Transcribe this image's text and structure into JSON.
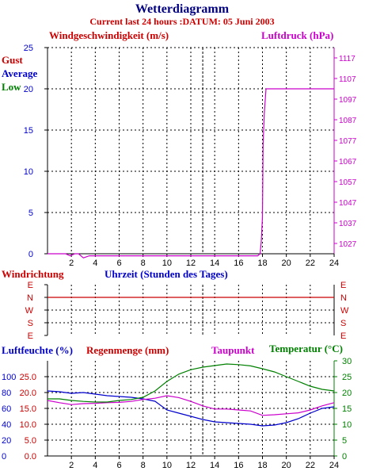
{
  "header": {
    "title": "Wetterdiagramm",
    "subtitle": "Current last 24 hours :DATUM: 05 Juni 2003"
  },
  "colors": {
    "title": "#000080",
    "subtitle": "#cc0000",
    "gust": "#cc0000",
    "average": "#0000cc",
    "low": "#008000",
    "pressure": "#cc00cc",
    "humidity": "#0000cc",
    "rain": "#cc0000",
    "dewpoint": "#cc00cc",
    "temperature": "#008000",
    "axis": "#000000"
  },
  "chart_data": [
    {
      "type": "line",
      "title": "Windgeschwindigkeit (m/s)",
      "title_right": "Luftdruck (hPa)",
      "xlabel": "Uhrzeit (Stunden des Tages)",
      "xlim": [
        0,
        24
      ],
      "x_ticks": [
        2,
        4,
        6,
        8,
        10,
        12,
        14,
        16,
        18,
        20,
        22,
        24
      ],
      "ylim": [
        0,
        25
      ],
      "y_ticks": [
        0,
        5,
        10,
        15,
        20,
        25
      ],
      "y2lim": [
        1022,
        1122
      ],
      "y2_ticks": [
        1027,
        1037,
        1047,
        1057,
        1067,
        1077,
        1087,
        1097,
        1107,
        1117
      ],
      "grid": true,
      "legend": [
        "Gust",
        "Average",
        "Low"
      ],
      "series": [
        {
          "name": "Luftdruck (hPa)",
          "axis": "right",
          "x": [
            0,
            0.5,
            1.0,
            1.5,
            1.9,
            2.3,
            2.6,
            3.0,
            3.5,
            4.0,
            5.0,
            6.0,
            7.0,
            8.0,
            9.0,
            10.0,
            11.0,
            12.0,
            13.0,
            14.0,
            15.0,
            16.0,
            17.0,
            17.6,
            17.8,
            17.9,
            18.0,
            18.05,
            18.15,
            18.3,
            19,
            20,
            21,
            22,
            23,
            24
          ],
          "y": [
            1022,
            1022,
            1022,
            1022,
            1021,
            1022,
            1022,
            1020,
            1021,
            1021,
            1021,
            1021,
            1021,
            1021,
            1021,
            1021,
            1021,
            1021,
            1021,
            1021,
            1021,
            1021,
            1021,
            1021,
            1022,
            1028,
            1040,
            1075,
            1090,
            1102,
            1102,
            1102,
            1102,
            1102,
            1102,
            1102
          ]
        }
      ]
    },
    {
      "type": "line",
      "title": "Windrichtung",
      "xlim": [
        0,
        24
      ],
      "y_categories": [
        "E",
        "N",
        "W",
        "S",
        "E"
      ],
      "grid": true,
      "series": [
        {
          "name": "Windrichtung",
          "x": [
            0,
            24
          ],
          "y": [
            "N",
            "N"
          ]
        }
      ]
    },
    {
      "type": "line",
      "title": "Luftfeuchte (%)",
      "title_rain": "Regenmenge (mm)",
      "title_dew": "Taupunkt",
      "title_right": "Temperatur (°C)",
      "xlim": [
        0,
        24
      ],
      "x_ticks": [
        2,
        4,
        6,
        8,
        10,
        12,
        14,
        16,
        18,
        20,
        22,
        24
      ],
      "y_ticks_humidity": [
        0,
        20,
        40,
        60,
        80,
        100
      ],
      "y_ticks_rain": [
        "0.0",
        "5.0",
        "10.0",
        "15.0",
        "20.0",
        "25.0"
      ],
      "ylim_temp": [
        0,
        30
      ],
      "y_ticks_temp": [
        0,
        5,
        10,
        15,
        20,
        25,
        30
      ],
      "grid": true,
      "series": [
        {
          "name": "Luftfeuchte (%)",
          "axis": "humidity",
          "x": [
            0,
            1,
            2,
            3,
            4,
            5,
            6,
            7,
            8,
            9,
            10,
            11,
            12,
            13,
            14,
            15,
            16,
            17,
            18,
            19,
            20,
            21,
            22,
            23,
            24
          ],
          "y": [
            82,
            81,
            79,
            80,
            78,
            76,
            75,
            74,
            72,
            69,
            58,
            54,
            50,
            46,
            43,
            42,
            41,
            40,
            38,
            39,
            42,
            47,
            54,
            60,
            62
          ]
        },
        {
          "name": "Taupunkt",
          "axis": "temperature",
          "x": [
            0,
            1,
            2,
            3,
            4,
            5,
            6,
            7,
            8,
            9,
            10,
            11,
            12,
            13,
            14,
            15,
            16,
            17,
            18,
            19,
            20,
            21,
            22,
            23,
            24
          ],
          "y": [
            17.5,
            16.8,
            16.2,
            16.5,
            16.6,
            16.8,
            16.9,
            17.2,
            17.8,
            18.2,
            19.0,
            18.4,
            17.2,
            15.8,
            14.8,
            14.8,
            14.5,
            14.2,
            12.8,
            13.0,
            13.3,
            13.6,
            14.5,
            15.8,
            16.8
          ]
        },
        {
          "name": "Temperatur (°C)",
          "axis": "temperature",
          "x": [
            0,
            1,
            2,
            3,
            4,
            5,
            6,
            7,
            8,
            9,
            10,
            11,
            12,
            13,
            14,
            15,
            16,
            17,
            18,
            19,
            20,
            21,
            22,
            23,
            24
          ],
          "y": [
            18.0,
            18.0,
            17.5,
            17.2,
            17.0,
            17.0,
            17.5,
            17.8,
            18.5,
            20.5,
            23.5,
            25.8,
            27.2,
            28.0,
            28.5,
            29.0,
            28.8,
            28.4,
            27.5,
            26.5,
            25.0,
            23.5,
            22.0,
            21.0,
            20.5
          ]
        }
      ]
    }
  ]
}
